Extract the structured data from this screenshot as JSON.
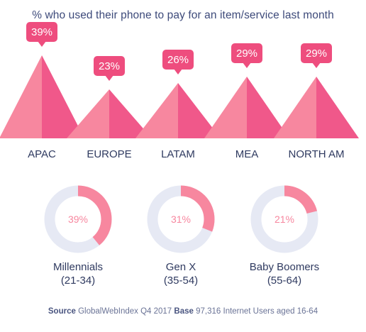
{
  "colors": {
    "accent": "#ee4d7e",
    "light": "#f7879f",
    "ring_track": "#e6e9f4",
    "text_dark": "#2f3a60",
    "text_muted": "#6a7396"
  },
  "chart_data": [
    {
      "type": "bar",
      "title": "% who used their phone to pay for an item/service last month",
      "categories": [
        "APAC",
        "EUROPE",
        "LATAM",
        "MEA",
        "NORTH AM"
      ],
      "values": [
        39,
        23,
        26,
        29,
        29
      ],
      "value_labels": [
        "39%",
        "23%",
        "26%",
        "29%",
        "29%"
      ],
      "unit": "%",
      "ylim": [
        0,
        39
      ]
    },
    {
      "type": "pie",
      "categories": [
        "Millennials",
        "Gen X",
        "Baby Boomers"
      ],
      "subtitles": [
        "(21-34)",
        "(35-54)",
        "(55-64)"
      ],
      "values": [
        39,
        31,
        21
      ],
      "value_labels": [
        "39%",
        "31%",
        "21%"
      ],
      "unit": "%"
    }
  ],
  "footer": {
    "source_label": "Source",
    "source_text": "GlobalWebIndex Q4 2017",
    "base_label": "Base",
    "base_text": "97,316 Internet Users aged 16-64"
  }
}
